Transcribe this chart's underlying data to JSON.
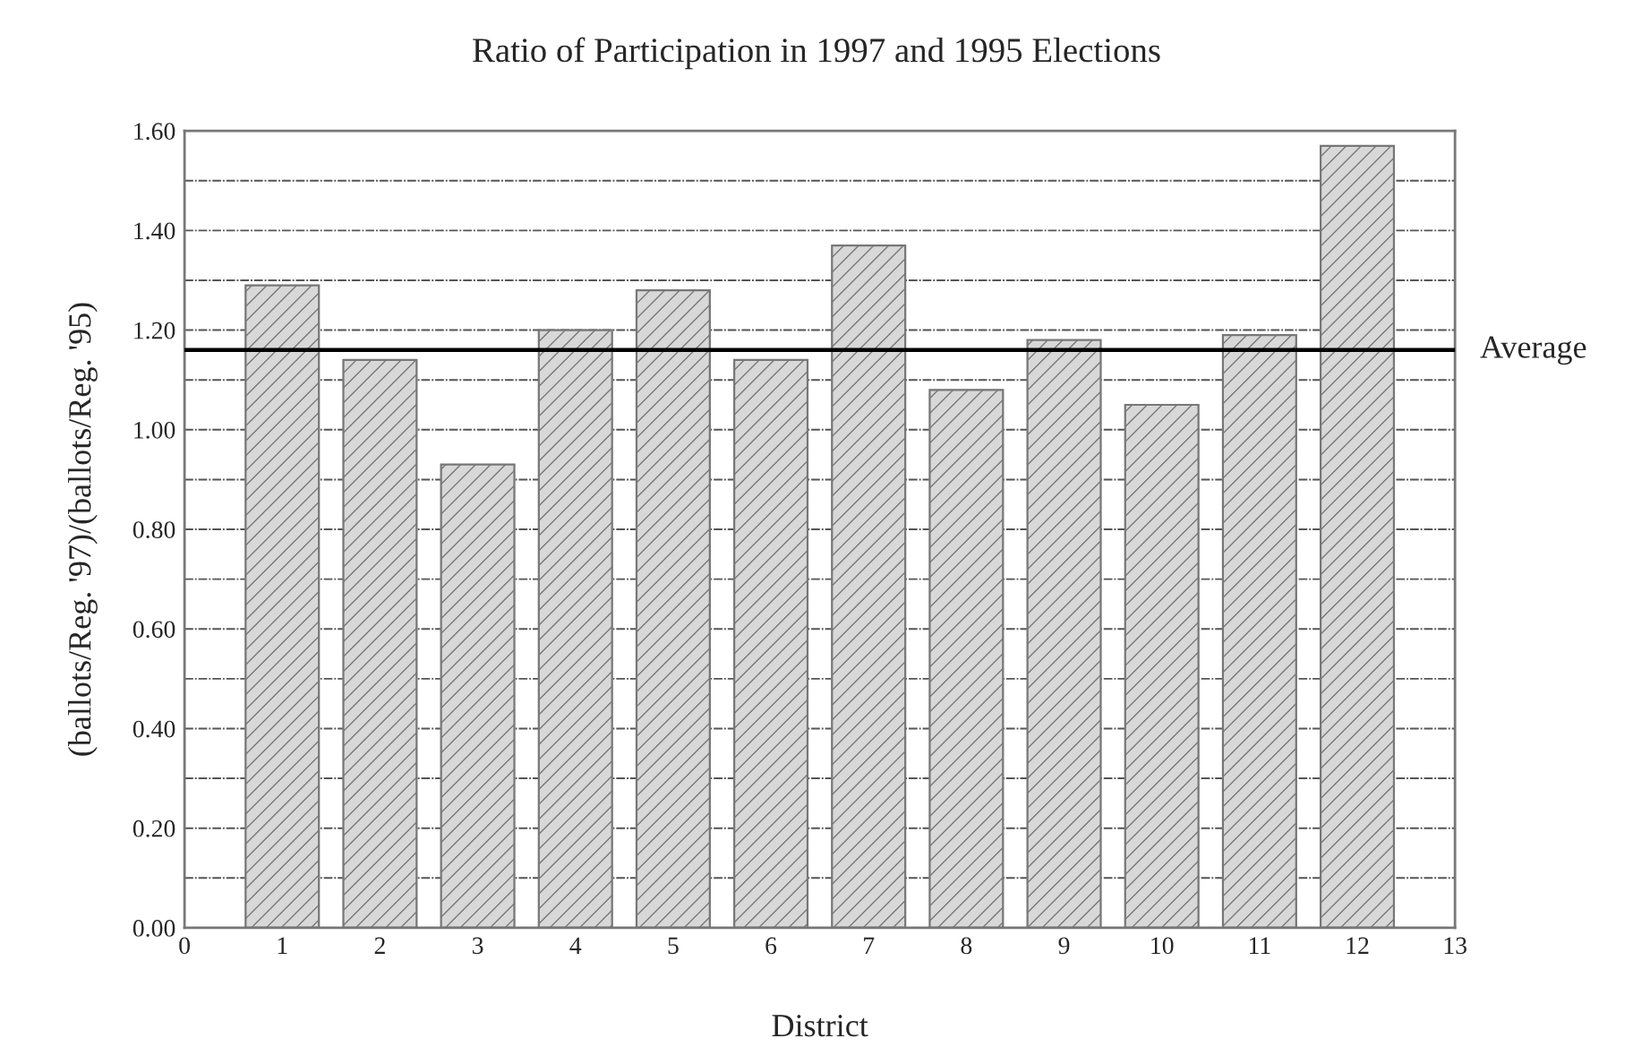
{
  "chart_data": {
    "type": "bar",
    "title": "Ratio of Participation in 1997 and 1995 Elections",
    "xlabel": "District",
    "ylabel": "(ballots/Reg. '97)/(ballots/Reg. '95)",
    "x": [
      1,
      2,
      3,
      4,
      5,
      6,
      7,
      8,
      9,
      10,
      11,
      12
    ],
    "values": [
      1.29,
      1.14,
      0.93,
      1.2,
      1.28,
      1.14,
      1.37,
      1.08,
      1.18,
      1.05,
      1.19,
      1.57
    ],
    "color": "#d8d8d8",
    "xlim": [
      0,
      13
    ],
    "xticks": [
      0,
      1,
      2,
      3,
      4,
      5,
      6,
      7,
      8,
      9,
      10,
      11,
      12,
      13
    ],
    "ylim": [
      0,
      1.6
    ],
    "yticks": [
      {
        "value": 0,
        "label": "0.00"
      },
      {
        "value": 0.1,
        "label": null
      },
      {
        "value": 0.2,
        "label": "0.20"
      },
      {
        "value": 0.3,
        "label": null
      },
      {
        "value": 0.4,
        "label": "0.40"
      },
      {
        "value": 0.5,
        "label": null
      },
      {
        "value": 0.6,
        "label": "0.60"
      },
      {
        "value": 0.7,
        "label": null
      },
      {
        "value": 0.8,
        "label": "0.80"
      },
      {
        "value": 0.9,
        "label": null
      },
      {
        "value": 1.0,
        "label": "1.00"
      },
      {
        "value": 1.1,
        "label": null
      },
      {
        "value": 1.2,
        "label": "1.20"
      },
      {
        "value": 1.3,
        "label": null
      },
      {
        "value": 1.4,
        "label": "1.40"
      },
      {
        "value": 1.5,
        "label": null
      },
      {
        "value": 1.6,
        "label": "1.60"
      }
    ],
    "ref_lines": [
      {
        "axis": "y",
        "value": 1.16,
        "label": "Average",
        "color": "#000000",
        "line_style": "solid"
      }
    ],
    "grid": "y",
    "legend": false
  }
}
